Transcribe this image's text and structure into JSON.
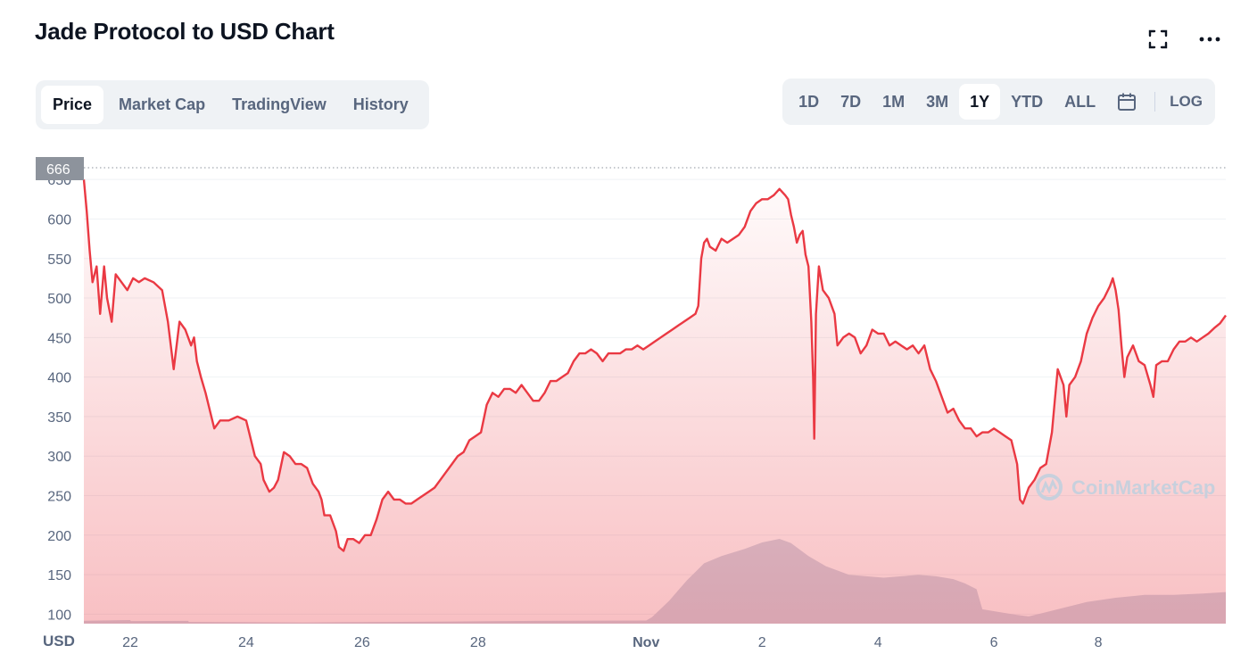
{
  "title": "Jade Protocol to USD Chart",
  "tabs": [
    {
      "label": "Price",
      "active": true
    },
    {
      "label": "Market Cap",
      "active": false
    },
    {
      "label": "TradingView",
      "active": false
    },
    {
      "label": "History",
      "active": false
    }
  ],
  "ranges": [
    {
      "label": "1D",
      "active": false
    },
    {
      "label": "7D",
      "active": false
    },
    {
      "label": "1M",
      "active": false
    },
    {
      "label": "3M",
      "active": false
    },
    {
      "label": "1Y",
      "active": true
    },
    {
      "label": "YTD",
      "active": false
    },
    {
      "label": "ALL",
      "active": false
    }
  ],
  "log_label": "LOG",
  "icons": {
    "fullscreen": "fullscreen-icon",
    "more": "more-icon",
    "calendar": "calendar-icon"
  },
  "watermark": "CoinMarketCap",
  "currency_label": "USD",
  "colors": {
    "line": "#ea3943",
    "fill": "#ea3943",
    "volume": "#cfd6e4",
    "badge": "#8d939c"
  },
  "chart_data": {
    "type": "line",
    "title": "Jade Protocol to USD Chart",
    "ylabel": "USD",
    "ylim": [
      88,
      666
    ],
    "current_value_badge": "666",
    "y_ticks": [
      100,
      150,
      200,
      250,
      300,
      350,
      400,
      450,
      500,
      550,
      600,
      650
    ],
    "x_ticks": [
      {
        "label": "22",
        "day": 22,
        "bold": false
      },
      {
        "label": "24",
        "day": 24,
        "bold": false
      },
      {
        "label": "26",
        "day": 26,
        "bold": false
      },
      {
        "label": "28",
        "day": 28,
        "bold": false
      },
      {
        "label": "Nov",
        "day": 30.9,
        "bold": true
      },
      {
        "label": "2",
        "day": 32.9,
        "bold": false
      },
      {
        "label": "4",
        "day": 34.9,
        "bold": false
      },
      {
        "label": "6",
        "day": 36.9,
        "bold": false
      },
      {
        "label": "8",
        "day": 38.7,
        "bold": false
      }
    ],
    "x_range": [
      21.2,
      40.9
    ],
    "series": [
      {
        "values": [
          [
            21.2,
            650
          ],
          [
            21.25,
            610
          ],
          [
            21.3,
            560
          ],
          [
            21.35,
            520
          ],
          [
            21.42,
            540
          ],
          [
            21.48,
            480
          ],
          [
            21.55,
            540
          ],
          [
            21.6,
            500
          ],
          [
            21.68,
            470
          ],
          [
            21.75,
            530
          ],
          [
            21.85,
            520
          ],
          [
            21.95,
            510
          ],
          [
            22.05,
            525
          ],
          [
            22.15,
            520
          ],
          [
            22.25,
            525
          ],
          [
            22.4,
            520
          ],
          [
            22.55,
            510
          ],
          [
            22.65,
            470
          ],
          [
            22.75,
            410
          ],
          [
            22.85,
            470
          ],
          [
            22.95,
            460
          ],
          [
            23.05,
            440
          ],
          [
            23.1,
            450
          ],
          [
            23.15,
            420
          ],
          [
            23.22,
            400
          ],
          [
            23.3,
            380
          ],
          [
            23.4,
            350
          ],
          [
            23.45,
            335
          ],
          [
            23.55,
            345
          ],
          [
            23.7,
            345
          ],
          [
            23.85,
            350
          ],
          [
            24.0,
            345
          ],
          [
            24.05,
            330
          ],
          [
            24.15,
            300
          ],
          [
            24.25,
            290
          ],
          [
            24.3,
            270
          ],
          [
            24.4,
            255
          ],
          [
            24.48,
            260
          ],
          [
            24.55,
            270
          ],
          [
            24.65,
            305
          ],
          [
            24.75,
            300
          ],
          [
            24.85,
            290
          ],
          [
            24.95,
            290
          ],
          [
            25.05,
            285
          ],
          [
            25.15,
            265
          ],
          [
            25.25,
            255
          ],
          [
            25.3,
            245
          ],
          [
            25.35,
            225
          ],
          [
            25.45,
            225
          ],
          [
            25.55,
            205
          ],
          [
            25.6,
            185
          ],
          [
            25.68,
            180
          ],
          [
            25.75,
            195
          ],
          [
            25.85,
            195
          ],
          [
            25.95,
            190
          ],
          [
            26.05,
            200
          ],
          [
            26.15,
            200
          ],
          [
            26.25,
            220
          ],
          [
            26.35,
            245
          ],
          [
            26.45,
            255
          ],
          [
            26.55,
            245
          ],
          [
            26.65,
            245
          ],
          [
            26.75,
            240
          ],
          [
            26.85,
            240
          ],
          [
            26.95,
            245
          ],
          [
            27.05,
            250
          ],
          [
            27.15,
            255
          ],
          [
            27.25,
            260
          ],
          [
            27.35,
            270
          ],
          [
            27.45,
            280
          ],
          [
            27.55,
            290
          ],
          [
            27.65,
            300
          ],
          [
            27.75,
            305
          ],
          [
            27.85,
            320
          ],
          [
            27.95,
            325
          ],
          [
            28.05,
            330
          ],
          [
            28.15,
            365
          ],
          [
            28.25,
            380
          ],
          [
            28.35,
            375
          ],
          [
            28.45,
            385
          ],
          [
            28.55,
            385
          ],
          [
            28.65,
            380
          ],
          [
            28.75,
            390
          ],
          [
            28.85,
            380
          ],
          [
            28.95,
            370
          ],
          [
            29.05,
            370
          ],
          [
            29.15,
            380
          ],
          [
            29.25,
            395
          ],
          [
            29.35,
            395
          ],
          [
            29.45,
            400
          ],
          [
            29.55,
            405
          ],
          [
            29.65,
            420
          ],
          [
            29.75,
            430
          ],
          [
            29.85,
            430
          ],
          [
            29.95,
            435
          ],
          [
            30.05,
            430
          ],
          [
            30.15,
            420
          ],
          [
            30.25,
            430
          ],
          [
            30.35,
            430
          ],
          [
            30.45,
            430
          ],
          [
            30.55,
            435
          ],
          [
            30.65,
            435
          ],
          [
            30.75,
            440
          ],
          [
            30.85,
            435
          ],
          [
            30.95,
            440
          ],
          [
            31.05,
            445
          ],
          [
            31.15,
            450
          ],
          [
            31.25,
            455
          ],
          [
            31.35,
            460
          ],
          [
            31.45,
            465
          ],
          [
            31.55,
            470
          ],
          [
            31.65,
            475
          ],
          [
            31.75,
            480
          ],
          [
            31.8,
            490
          ],
          [
            31.85,
            550
          ],
          [
            31.9,
            570
          ],
          [
            31.95,
            575
          ],
          [
            32.0,
            565
          ],
          [
            32.1,
            560
          ],
          [
            32.2,
            575
          ],
          [
            32.3,
            570
          ],
          [
            32.4,
            575
          ],
          [
            32.5,
            580
          ],
          [
            32.6,
            590
          ],
          [
            32.7,
            610
          ],
          [
            32.8,
            620
          ],
          [
            32.9,
            625
          ],
          [
            33.0,
            625
          ],
          [
            33.1,
            630
          ],
          [
            33.2,
            638
          ],
          [
            33.3,
            630
          ],
          [
            33.35,
            625
          ],
          [
            33.4,
            605
          ],
          [
            33.45,
            590
          ],
          [
            33.5,
            570
          ],
          [
            33.55,
            580
          ],
          [
            33.6,
            585
          ],
          [
            33.65,
            555
          ],
          [
            33.7,
            540
          ],
          [
            33.75,
            470
          ],
          [
            33.78,
            400
          ],
          [
            33.8,
            322
          ],
          [
            33.83,
            480
          ],
          [
            33.88,
            540
          ],
          [
            33.95,
            510
          ],
          [
            34.05,
            500
          ],
          [
            34.15,
            480
          ],
          [
            34.2,
            440
          ],
          [
            34.3,
            450
          ],
          [
            34.4,
            455
          ],
          [
            34.5,
            450
          ],
          [
            34.6,
            430
          ],
          [
            34.7,
            440
          ],
          [
            34.8,
            460
          ],
          [
            34.9,
            455
          ],
          [
            35.0,
            455
          ],
          [
            35.1,
            440
          ],
          [
            35.2,
            445
          ],
          [
            35.3,
            440
          ],
          [
            35.4,
            435
          ],
          [
            35.5,
            440
          ],
          [
            35.6,
            430
          ],
          [
            35.7,
            440
          ],
          [
            35.8,
            410
          ],
          [
            35.9,
            395
          ],
          [
            36.0,
            375
          ],
          [
            36.1,
            355
          ],
          [
            36.2,
            360
          ],
          [
            36.3,
            345
          ],
          [
            36.4,
            335
          ],
          [
            36.5,
            335
          ],
          [
            36.6,
            325
          ],
          [
            36.7,
            330
          ],
          [
            36.8,
            330
          ],
          [
            36.9,
            335
          ],
          [
            37.0,
            330
          ],
          [
            37.1,
            325
          ],
          [
            37.2,
            320
          ],
          [
            37.3,
            290
          ],
          [
            37.35,
            245
          ],
          [
            37.4,
            240
          ],
          [
            37.5,
            260
          ],
          [
            37.6,
            270
          ],
          [
            37.7,
            285
          ],
          [
            37.8,
            290
          ],
          [
            37.9,
            330
          ],
          [
            37.95,
            370
          ],
          [
            38.0,
            410
          ],
          [
            38.1,
            390
          ],
          [
            38.15,
            350
          ],
          [
            38.2,
            390
          ],
          [
            38.3,
            400
          ],
          [
            38.4,
            420
          ],
          [
            38.5,
            455
          ],
          [
            38.6,
            475
          ],
          [
            38.7,
            490
          ],
          [
            38.8,
            500
          ],
          [
            38.9,
            515
          ],
          [
            38.95,
            525
          ],
          [
            39.0,
            510
          ],
          [
            39.05,
            485
          ],
          [
            39.1,
            440
          ],
          [
            39.15,
            400
          ],
          [
            39.2,
            425
          ],
          [
            39.3,
            440
          ],
          [
            39.4,
            420
          ],
          [
            39.5,
            415
          ],
          [
            39.6,
            390
          ],
          [
            39.65,
            375
          ],
          [
            39.7,
            415
          ],
          [
            39.8,
            420
          ],
          [
            39.9,
            420
          ],
          [
            40.0,
            435
          ],
          [
            40.1,
            445
          ],
          [
            40.2,
            445
          ],
          [
            40.3,
            450
          ],
          [
            40.4,
            445
          ],
          [
            40.5,
            450
          ],
          [
            40.6,
            455
          ],
          [
            40.7,
            462
          ],
          [
            40.8,
            468
          ],
          [
            40.9,
            478
          ]
        ]
      }
    ],
    "volume": [
      [
        21.2,
        0.02
      ],
      [
        22.0,
        0.025
      ],
      [
        22.01,
        0.018
      ],
      [
        23.0,
        0.019
      ],
      [
        23.01,
        0.012
      ],
      [
        24.0,
        0.01
      ],
      [
        25.0,
        0.008
      ],
      [
        26.0,
        0.011
      ],
      [
        27.0,
        0.013
      ],
      [
        28.0,
        0.016
      ],
      [
        29.0,
        0.019
      ],
      [
        30.0,
        0.021
      ],
      [
        30.9,
        0.022
      ],
      [
        31.0,
        0.045
      ],
      [
        31.3,
        0.16
      ],
      [
        31.6,
        0.3
      ],
      [
        31.9,
        0.42
      ],
      [
        32.2,
        0.47
      ],
      [
        32.6,
        0.52
      ],
      [
        32.9,
        0.565
      ],
      [
        33.2,
        0.59
      ],
      [
        33.4,
        0.56
      ],
      [
        33.7,
        0.47
      ],
      [
        34.0,
        0.4
      ],
      [
        34.4,
        0.34
      ],
      [
        34.7,
        0.33
      ],
      [
        35.0,
        0.32
      ],
      [
        35.3,
        0.33
      ],
      [
        35.6,
        0.34
      ],
      [
        35.9,
        0.33
      ],
      [
        36.2,
        0.31
      ],
      [
        36.4,
        0.28
      ],
      [
        36.6,
        0.24
      ],
      [
        36.7,
        0.1
      ],
      [
        37.0,
        0.08
      ],
      [
        37.3,
        0.06
      ],
      [
        37.5,
        0.05
      ],
      [
        37.7,
        0.07
      ],
      [
        38.0,
        0.1
      ],
      [
        38.5,
        0.15
      ],
      [
        39.0,
        0.18
      ],
      [
        39.5,
        0.2
      ],
      [
        40.0,
        0.2
      ],
      [
        40.5,
        0.21
      ],
      [
        40.9,
        0.22
      ]
    ]
  }
}
